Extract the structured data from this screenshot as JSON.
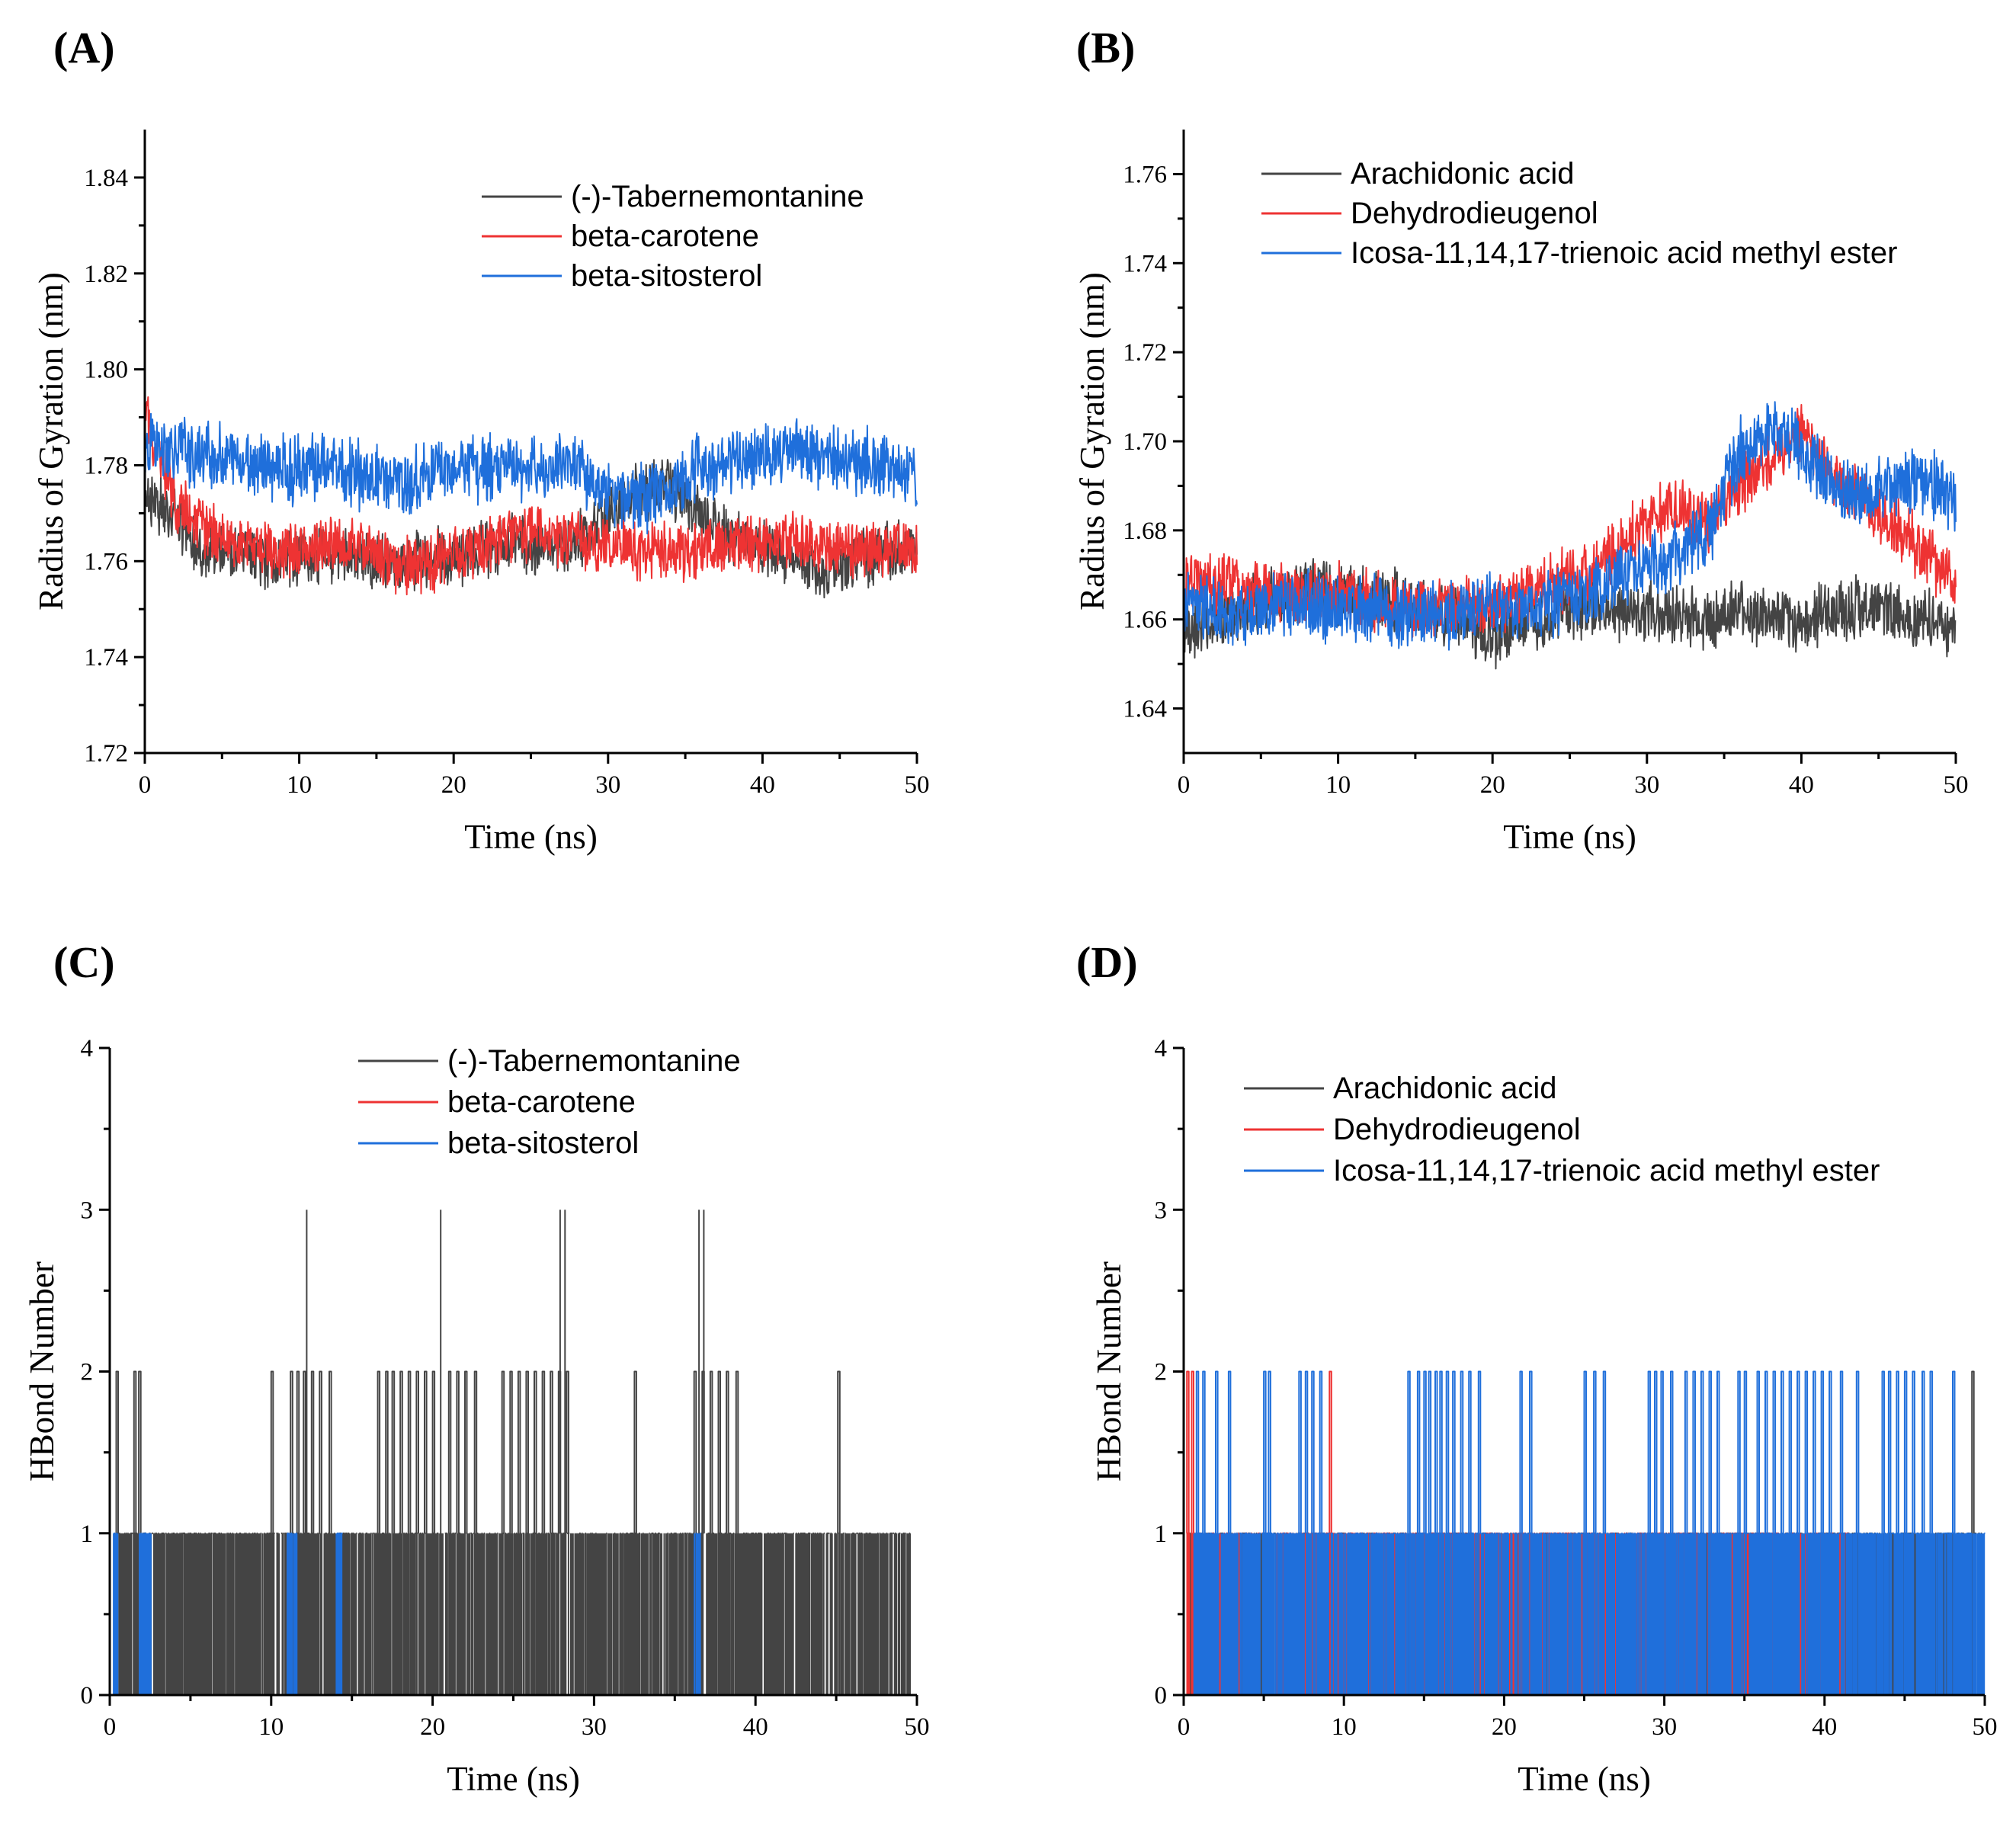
{
  "colors": {
    "black": "#444444",
    "red": "#ee3333",
    "blue": "#1f6fdb"
  },
  "chart_data": [
    {
      "id": "A",
      "panel_label": "(A)",
      "type": "line",
      "title": "",
      "xlabel": "Time (ns)",
      "ylabel": "Radius of Gyration (nm)",
      "xlim": [
        0,
        50
      ],
      "ylim": [
        1.72,
        1.85
      ],
      "xticks": [
        0,
        10,
        20,
        30,
        40,
        50
      ],
      "yticks": [
        1.72,
        1.74,
        1.76,
        1.78,
        1.8,
        1.82,
        1.84
      ],
      "ytick_labels": [
        "1.72",
        "1.74",
        "1.76",
        "1.78",
        "1.80",
        "1.82",
        "1.84"
      ],
      "legend_position": "top-right",
      "series": [
        {
          "name": "(-)-Tabernemontanine",
          "color": "#444444",
          "x": [
            0,
            2,
            4,
            6,
            8,
            10,
            12,
            14,
            16,
            18,
            20,
            22,
            24,
            26,
            28,
            30,
            32,
            34,
            36,
            38,
            40,
            42,
            44,
            46,
            48,
            50
          ],
          "values": [
            1.775,
            1.768,
            1.762,
            1.761,
            1.76,
            1.761,
            1.762,
            1.76,
            1.759,
            1.76,
            1.761,
            1.763,
            1.764,
            1.763,
            1.764,
            1.77,
            1.775,
            1.775,
            1.77,
            1.765,
            1.763,
            1.761,
            1.758,
            1.76,
            1.762,
            1.762
          ],
          "noise": 0.007
        },
        {
          "name": "beta-carotene",
          "color": "#ee3333",
          "x": [
            0,
            2,
            4,
            6,
            8,
            10,
            12,
            14,
            16,
            18,
            20,
            22,
            24,
            26,
            28,
            30,
            32,
            34,
            36,
            38,
            40,
            42,
            44,
            46,
            48,
            50
          ],
          "values": [
            1.79,
            1.772,
            1.766,
            1.764,
            1.762,
            1.762,
            1.764,
            1.763,
            1.76,
            1.759,
            1.762,
            1.763,
            1.766,
            1.765,
            1.764,
            1.763,
            1.762,
            1.762,
            1.762,
            1.763,
            1.764,
            1.764,
            1.763,
            1.763,
            1.762,
            1.762
          ],
          "noise": 0.007
        },
        {
          "name": "beta-sitosterol",
          "color": "#1f6fdb",
          "x": [
            0,
            2,
            4,
            6,
            8,
            10,
            12,
            14,
            16,
            18,
            20,
            22,
            24,
            26,
            28,
            30,
            32,
            34,
            36,
            38,
            40,
            42,
            44,
            46,
            48,
            50
          ],
          "values": [
            1.785,
            1.783,
            1.782,
            1.781,
            1.78,
            1.779,
            1.78,
            1.778,
            1.776,
            1.777,
            1.78,
            1.779,
            1.78,
            1.779,
            1.78,
            1.774,
            1.773,
            1.775,
            1.78,
            1.781,
            1.782,
            1.783,
            1.782,
            1.781,
            1.78,
            1.778
          ],
          "noise": 0.008
        }
      ]
    },
    {
      "id": "B",
      "panel_label": "(B)",
      "type": "line",
      "title": "",
      "xlabel": "Time (ns)",
      "ylabel": "Radius of Gyration (nm)",
      "xlim": [
        0,
        50
      ],
      "ylim": [
        1.63,
        1.77
      ],
      "xticks": [
        0,
        10,
        20,
        30,
        40,
        50
      ],
      "yticks": [
        1.64,
        1.66,
        1.68,
        1.7,
        1.72,
        1.74,
        1.76
      ],
      "ytick_labels": [
        "1.64",
        "1.66",
        "1.68",
        "1.70",
        "1.72",
        "1.74",
        "1.76"
      ],
      "legend_position": "top-left",
      "series": [
        {
          "name": "Arachidonic acid",
          "color": "#444444",
          "x": [
            0,
            2,
            4,
            6,
            8,
            10,
            12,
            14,
            16,
            18,
            20,
            22,
            24,
            26,
            28,
            30,
            32,
            34,
            36,
            38,
            40,
            42,
            44,
            46,
            48,
            50
          ],
          "values": [
            1.658,
            1.66,
            1.662,
            1.665,
            1.667,
            1.666,
            1.665,
            1.664,
            1.662,
            1.66,
            1.655,
            1.66,
            1.662,
            1.663,
            1.662,
            1.662,
            1.661,
            1.66,
            1.662,
            1.66,
            1.659,
            1.662,
            1.663,
            1.662,
            1.66,
            1.658
          ],
          "noise": 0.008
        },
        {
          "name": "Dehydrodieugenol",
          "color": "#ee3333",
          "x": [
            0,
            2,
            4,
            6,
            8,
            10,
            12,
            14,
            16,
            18,
            20,
            22,
            24,
            26,
            28,
            30,
            32,
            34,
            36,
            38,
            40,
            42,
            44,
            46,
            48,
            50
          ],
          "values": [
            1.668,
            1.668,
            1.667,
            1.666,
            1.665,
            1.666,
            1.664,
            1.663,
            1.662,
            1.663,
            1.663,
            1.666,
            1.668,
            1.67,
            1.675,
            1.683,
            1.685,
            1.682,
            1.69,
            1.696,
            1.702,
            1.692,
            1.688,
            1.68,
            1.675,
            1.668
          ],
          "noise": 0.008
        },
        {
          "name": "Icosa-11,14,17-trienoic acid methyl ester",
          "color": "#1f6fdb",
          "x": [
            0,
            2,
            4,
            6,
            8,
            10,
            12,
            14,
            16,
            18,
            20,
            22,
            24,
            26,
            28,
            30,
            32,
            34,
            36,
            38,
            40,
            42,
            44,
            46,
            48,
            50
          ],
          "values": [
            1.662,
            1.662,
            1.661,
            1.664,
            1.663,
            1.662,
            1.662,
            1.661,
            1.661,
            1.661,
            1.662,
            1.662,
            1.664,
            1.666,
            1.669,
            1.672,
            1.674,
            1.68,
            1.697,
            1.703,
            1.698,
            1.69,
            1.688,
            1.69,
            1.692,
            1.686
          ],
          "noise": 0.009
        }
      ]
    },
    {
      "id": "C",
      "panel_label": "(C)",
      "type": "line",
      "title": "",
      "xlabel": "Time (ns)",
      "ylabel": "HBond Number",
      "xlim": [
        0,
        50
      ],
      "ylim": [
        0,
        4
      ],
      "xticks": [
        0,
        10,
        20,
        30,
        40,
        50
      ],
      "yticks": [
        0,
        1,
        2,
        3,
        4
      ],
      "ytick_labels": [
        "0",
        "1",
        "2",
        "3",
        "4"
      ],
      "legend_position": "top-center",
      "series": [
        {
          "name": "(-)-Tabernemontanine",
          "color": "#444444",
          "spikes2": [
            0.4,
            1.5,
            1.8,
            10.0,
            11.2,
            11.6,
            12.0,
            12.5,
            13.0,
            13.6,
            16.6,
            17.1,
            17.5,
            18.0,
            18.5,
            19.0,
            19.5,
            20.0,
            21.0,
            21.5,
            22.0,
            22.6,
            24.3,
            24.8,
            25.3,
            25.8,
            26.3,
            26.8,
            27.3,
            27.8,
            28.3,
            32.5,
            36.2,
            36.7,
            37.2,
            37.7,
            38.2,
            38.8,
            45.1
          ],
          "spikes3": [
            12.2,
            20.5,
            27.9,
            28.2,
            36.5,
            36.8
          ],
          "dense": [
            [
              0.3,
              49.6
            ]
          ]
        },
        {
          "name": "beta-carotene",
          "color": "#ee3333",
          "spikes2": [],
          "spikes3": [],
          "dense": []
        },
        {
          "name": "beta-sitosterol",
          "color": "#1f6fdb",
          "spikes2": [],
          "spikes3": [],
          "dense": [
            [
              0.2,
              0.5
            ],
            [
              1.8,
              2.6
            ],
            [
              11.0,
              11.6
            ],
            [
              14.0,
              14.4
            ],
            [
              36.2,
              36.6
            ]
          ]
        }
      ]
    },
    {
      "id": "D",
      "panel_label": "(D)",
      "type": "line",
      "title": "",
      "xlabel": "Time (ns)",
      "ylabel": "HBond Number",
      "xlim": [
        0,
        50
      ],
      "ylim": [
        0,
        4
      ],
      "xticks": [
        0,
        10,
        20,
        30,
        40,
        50
      ],
      "yticks": [
        0,
        1,
        2,
        3,
        4
      ],
      "ytick_labels": [
        "0",
        "1",
        "2",
        "3",
        "4"
      ],
      "legend_position": "top-left",
      "series": [
        {
          "name": "Arachidonic acid",
          "color": "#444444",
          "spikes2": [
            49.2
          ],
          "spikes3": [],
          "dense": [
            [
              0.2,
              49.8
            ]
          ]
        },
        {
          "name": "Dehydrodieugenol",
          "color": "#ee3333",
          "spikes2": [
            0.2,
            0.5,
            9.1
          ],
          "spikes3": [],
          "dense": [
            [
              0.2,
              41.5
            ]
          ]
        },
        {
          "name": "Icosa-11,14,17-trienoic acid methyl ester",
          "color": "#1f6fdb",
          "spikes2": [
            0.8,
            1.2,
            2.0,
            2.8,
            5.0,
            5.3,
            7.2,
            7.6,
            8.0,
            8.5,
            14.0,
            14.6,
            15.0,
            15.3,
            15.7,
            16.0,
            16.4,
            16.8,
            17.3,
            17.8,
            18.4,
            21.0,
            21.6,
            25.0,
            25.6,
            26.2,
            29.0,
            29.4,
            29.8,
            30.4,
            31.3,
            31.8,
            32.3,
            32.8,
            33.3,
            34.6,
            35.0,
            35.8,
            36.3,
            36.8,
            37.3,
            37.8,
            38.3,
            38.8,
            39.3,
            39.8,
            40.3,
            41.0,
            42.0,
            43.6,
            44.0,
            44.5,
            45.0,
            45.5,
            46.1,
            46.6,
            48.0
          ],
          "spikes3": [],
          "dense": [
            [
              0.6,
              50.0
            ]
          ]
        }
      ]
    }
  ]
}
